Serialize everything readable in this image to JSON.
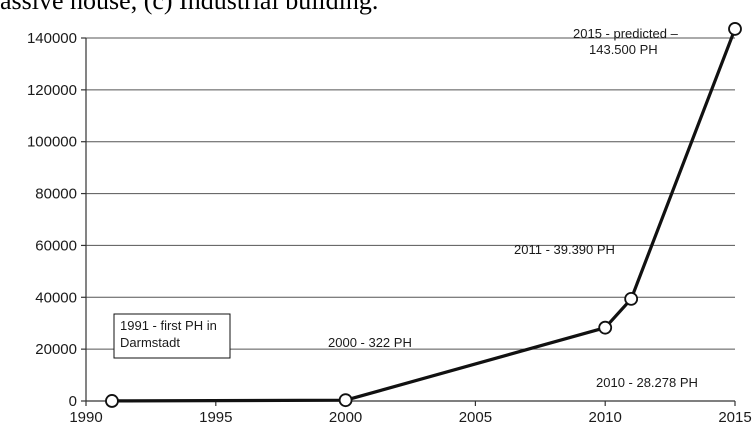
{
  "caption": "assive house, (c) Industrial building.",
  "chart_data": {
    "type": "line",
    "title": "",
    "xlabel": "",
    "ylabel": "",
    "xlim": [
      1990,
      2015
    ],
    "ylim": [
      0,
      140000
    ],
    "x_ticks": [
      1990,
      1995,
      2000,
      2005,
      2010,
      2015
    ],
    "y_ticks": [
      0,
      20000,
      40000,
      60000,
      80000,
      100000,
      120000,
      140000
    ],
    "grid": "horizontal",
    "series": [
      {
        "x": [
          1991,
          2000,
          2010,
          2011,
          2015
        ],
        "y": [
          20,
          322,
          28278,
          39390,
          143500
        ]
      }
    ],
    "annotations": {
      "first_ph": [
        "1991 - first PH in",
        "Darmstadt"
      ],
      "year_2000": "2000 - 322 PH",
      "year_2010": "2010 - 28.278 PH",
      "year_2011": "2011 - 39.390 PH",
      "year_2015": [
        "2015 - predicted  –",
        "143.500 PH"
      ]
    }
  }
}
